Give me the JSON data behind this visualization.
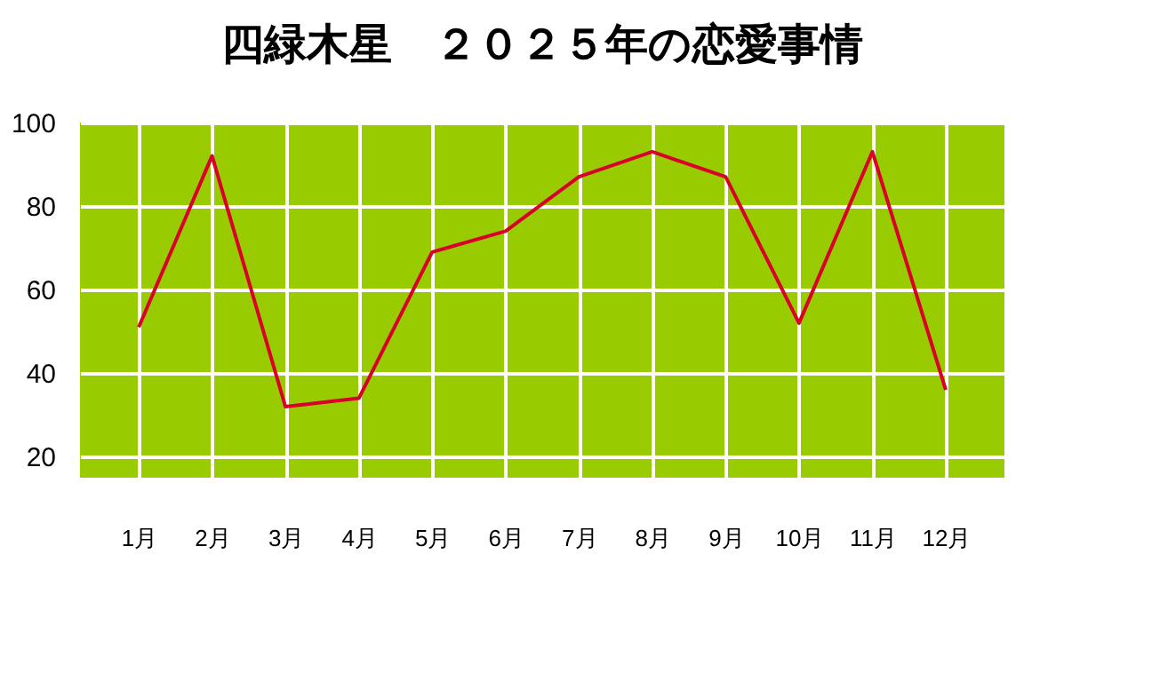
{
  "chart_data": {
    "type": "line",
    "title": "四緑木星　２０２５年の恋愛事情",
    "categories": [
      "1月",
      "2月",
      "3月",
      "4月",
      "5月",
      "6月",
      "7月",
      "8月",
      "9月",
      "10月",
      "11月",
      "12月"
    ],
    "series": [
      {
        "color": "#d9002a",
        "values": [
          51,
          92,
          32,
          34,
          69,
          74,
          87,
          93,
          87,
          52,
          93,
          36
        ]
      }
    ],
    "ylim": [
      15,
      100
    ],
    "yticks": [
      20,
      40,
      60,
      80,
      100
    ],
    "grid": true,
    "legend": false,
    "marker": "none",
    "line_style": "solid"
  }
}
